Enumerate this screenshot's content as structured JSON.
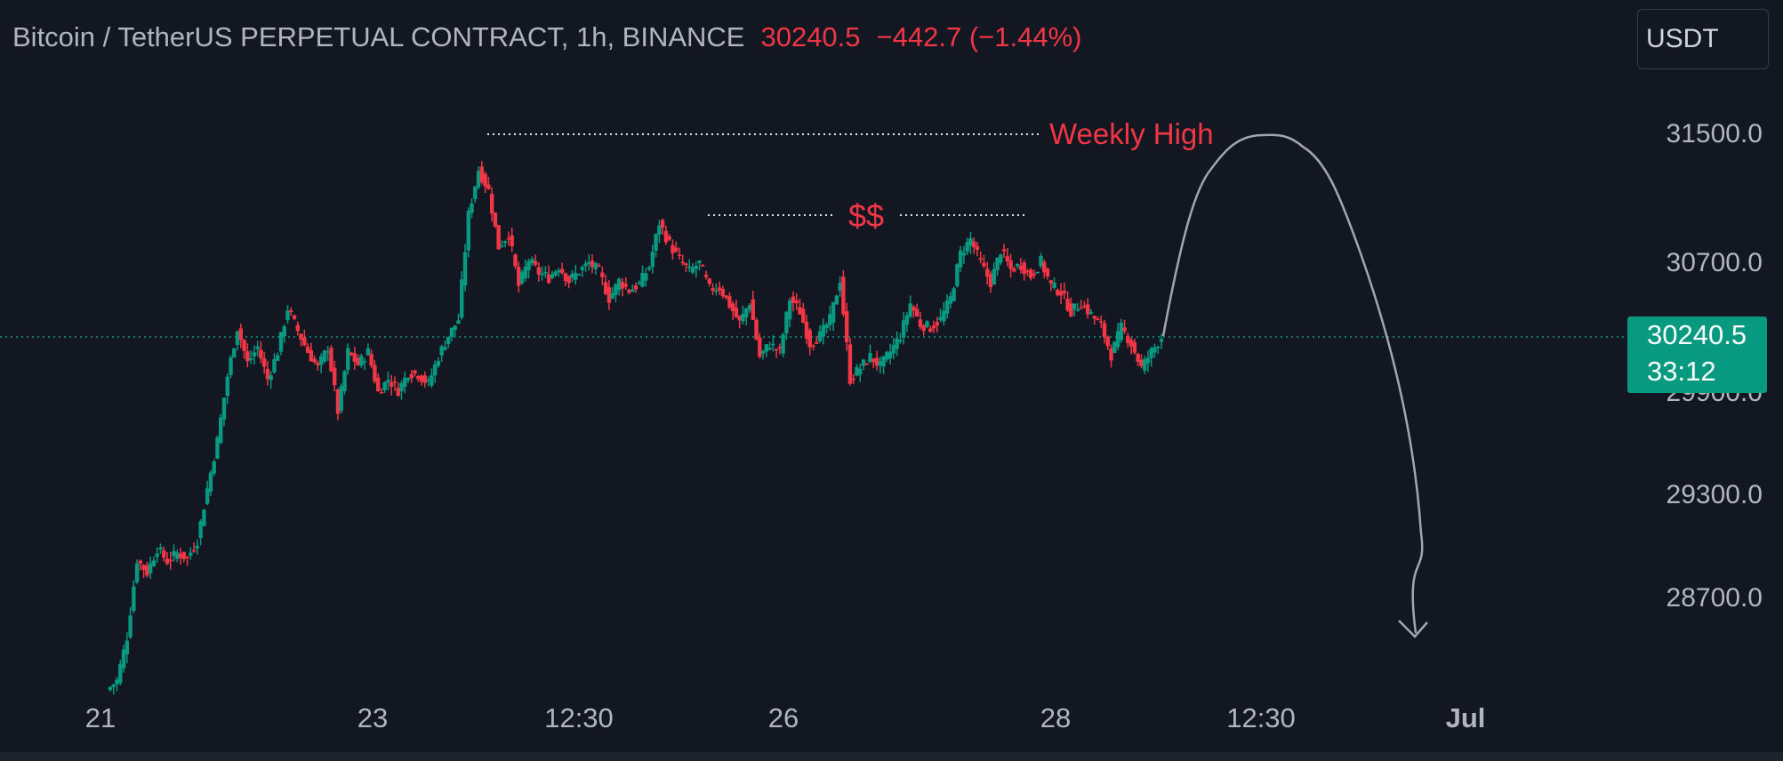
{
  "header": {
    "symbol_title": "Bitcoin / TetherUS PERPETUAL CONTRACT, 1h, BINANCE",
    "last_price": "30240.5",
    "change": "−442.7 (−1.44%)"
  },
  "currency_button": "USDT",
  "last_price_tag": {
    "price": "30240.5",
    "countdown": "33:12"
  },
  "colors": {
    "background": "#131722",
    "up": "#089981",
    "down": "#f23645",
    "annotation": "#f23645",
    "projection": "#a3a6af"
  },
  "chart_data": {
    "type": "candlestick",
    "title": "Bitcoin / TetherUS PERPETUAL CONTRACT, 1h, BINANCE",
    "y_axis": {
      "ticks": [
        31500,
        30700,
        29900,
        29300,
        28700
      ],
      "tick_labels": [
        "31500.0",
        "30700.0",
        "29900.0",
        "29300.0",
        "28700.0"
      ],
      "range": [
        27950,
        31950
      ]
    },
    "x_axis": {
      "ticks": [
        "21",
        "23",
        "12:30",
        "26",
        "28",
        "12:30",
        "Jul"
      ]
    },
    "price_line": 30240.5,
    "candles_path": [
      [
        28050,
        28110
      ],
      [
        28110,
        28380
      ],
      [
        28380,
        28860
      ],
      [
        28860,
        28780
      ],
      [
        28780,
        28930
      ],
      [
        28930,
        28850
      ],
      [
        28850,
        28900
      ],
      [
        28900,
        28870
      ],
      [
        28870,
        28980
      ],
      [
        28980,
        29300
      ],
      [
        29300,
        29600
      ],
      [
        29600,
        30000
      ],
      [
        30000,
        30300
      ],
      [
        30300,
        30080
      ],
      [
        30080,
        30180
      ],
      [
        30180,
        29980
      ],
      [
        29980,
        30150
      ],
      [
        30150,
        30420
      ],
      [
        30420,
        30280
      ],
      [
        30280,
        30150
      ],
      [
        30150,
        30050
      ],
      [
        30050,
        30180
      ],
      [
        30180,
        29780
      ],
      [
        29780,
        30150
      ],
      [
        30150,
        30070
      ],
      [
        30070,
        30150
      ],
      [
        30150,
        29900
      ],
      [
        29900,
        29980
      ],
      [
        29980,
        29910
      ],
      [
        29910,
        30020
      ],
      [
        30020,
        30010
      ],
      [
        30010,
        29950
      ],
      [
        29950,
        30120
      ],
      [
        30120,
        30250
      ],
      [
        30250,
        30350
      ],
      [
        30350,
        31000
      ],
      [
        31000,
        31280
      ],
      [
        31280,
        31150
      ],
      [
        31150,
        30800
      ],
      [
        30800,
        30880
      ],
      [
        30880,
        30560
      ],
      [
        30560,
        30720
      ],
      [
        30720,
        30640
      ],
      [
        30640,
        30610
      ],
      [
        30610,
        30680
      ],
      [
        30680,
        30590
      ],
      [
        30590,
        30650
      ],
      [
        30650,
        30700
      ],
      [
        30700,
        30650
      ],
      [
        30650,
        30480
      ],
      [
        30480,
        30590
      ],
      [
        30590,
        30530
      ],
      [
        30530,
        30570
      ],
      [
        30570,
        30680
      ],
      [
        30680,
        30950
      ],
      [
        30950,
        30820
      ],
      [
        30820,
        30720
      ],
      [
        30720,
        30650
      ],
      [
        30650,
        30700
      ],
      [
        30700,
        30540
      ],
      [
        30540,
        30550
      ],
      [
        30550,
        30440
      ],
      [
        30440,
        30330
      ],
      [
        30330,
        30460
      ],
      [
        30460,
        30120
      ],
      [
        30120,
        30200
      ],
      [
        30200,
        30150
      ],
      [
        30150,
        30480
      ],
      [
        30480,
        30400
      ],
      [
        30400,
        30200
      ],
      [
        30200,
        30250
      ],
      [
        30250,
        30350
      ],
      [
        30350,
        30600
      ],
      [
        30600,
        29980
      ],
      [
        29980,
        30050
      ],
      [
        30050,
        30120
      ],
      [
        30120,
        30060
      ],
      [
        30060,
        30150
      ],
      [
        30150,
        30250
      ],
      [
        30250,
        30450
      ],
      [
        30450,
        30320
      ],
      [
        30320,
        30300
      ],
      [
        30300,
        30350
      ],
      [
        30350,
        30480
      ],
      [
        30480,
        30760
      ],
      [
        30760,
        30850
      ],
      [
        30850,
        30700
      ],
      [
        30700,
        30580
      ],
      [
        30580,
        30780
      ],
      [
        30780,
        30660
      ],
      [
        30660,
        30690
      ],
      [
        30690,
        30620
      ],
      [
        30620,
        30710
      ],
      [
        30710,
        30560
      ],
      [
        30560,
        30520
      ],
      [
        30520,
        30400
      ],
      [
        30400,
        30450
      ],
      [
        30450,
        30380
      ],
      [
        30380,
        30310
      ],
      [
        30310,
        30130
      ],
      [
        30130,
        30300
      ],
      [
        30300,
        30200
      ],
      [
        30200,
        30050
      ],
      [
        30050,
        30150
      ],
      [
        30150,
        30240
      ]
    ],
    "annotations": [
      {
        "text": "Weekly High",
        "level": 31500
      },
      {
        "text": "$$",
        "level": 31120
      }
    ]
  }
}
